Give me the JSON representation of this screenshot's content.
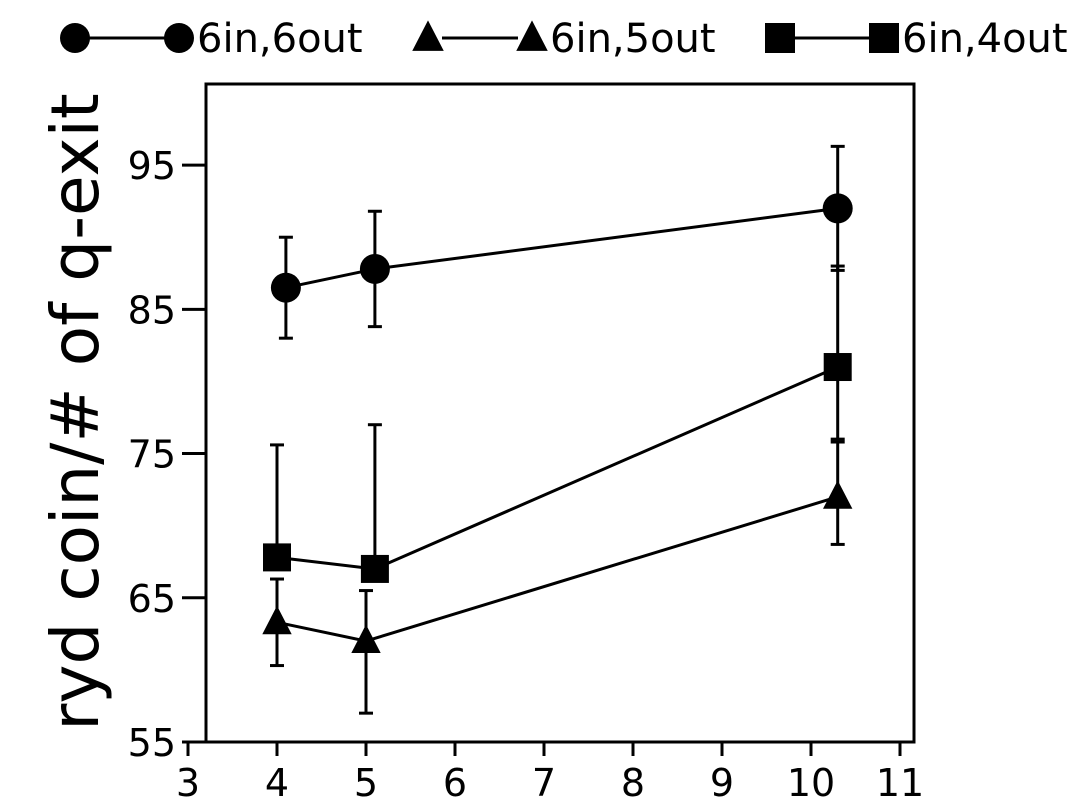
{
  "chart_data": {
    "type": "line",
    "xlabel": "",
    "ylabel": "ryd coin/# of q-exit",
    "xlim": [
      3,
      11
    ],
    "ylim": [
      55,
      100
    ],
    "xticks": [
      "3",
      "4",
      "5",
      "6",
      "7",
      "8",
      "9",
      "10",
      "11"
    ],
    "yticks": [
      "55",
      "65",
      "75",
      "85",
      "95"
    ],
    "grid": false,
    "legend_position": "top",
    "series": [
      {
        "name": "6in,6out",
        "marker": "circle",
        "color": "#000000",
        "points": [
          {
            "x": 4.1,
            "y": 86.5,
            "err_low": 3.5,
            "err_high": 3.5
          },
          {
            "x": 5.1,
            "y": 87.8,
            "err_low": 4.0,
            "err_high": 4.0
          },
          {
            "x": 10.3,
            "y": 92.0,
            "err_low": 4.3,
            "err_high": 4.3
          }
        ]
      },
      {
        "name": "6in,5out",
        "marker": "triangle",
        "color": "#000000",
        "points": [
          {
            "x": 4.0,
            "y": 63.3,
            "err_low": 3.0,
            "err_high": 3.0
          },
          {
            "x": 5.0,
            "y": 62.0,
            "err_low": 5.0,
            "err_high": 3.5
          },
          {
            "x": 10.3,
            "y": 72.0,
            "err_low": 3.3,
            "err_high": 3.8
          }
        ]
      },
      {
        "name": "6in,4out",
        "marker": "square",
        "color": "#000000",
        "points": [
          {
            "x": 4.0,
            "y": 67.8,
            "err_low": 0,
            "err_high": 7.8
          },
          {
            "x": 5.1,
            "y": 67.0,
            "err_low": 0,
            "err_high": 10.0
          },
          {
            "x": 10.3,
            "y": 81.0,
            "err_low": 5.0,
            "err_high": 7.0
          }
        ]
      }
    ]
  }
}
